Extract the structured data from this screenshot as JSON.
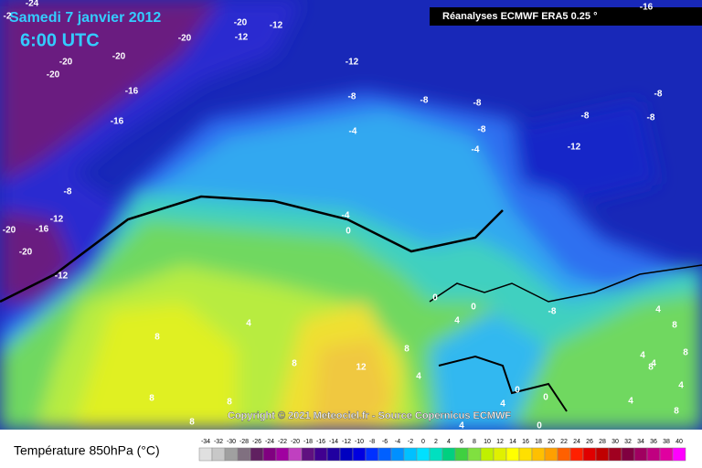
{
  "header": {
    "date": "Samedi 7 janvier 2012",
    "time": "6:00 UTC",
    "source_box": "Réanalyses ECMWF ERA5 0.25 °",
    "copyright": "Copyright © 2021 Meteociel.fr - Source Copernicus ECMWF"
  },
  "map": {
    "contour_labels": [
      -24,
      -2,
      -20,
      -12,
      -12,
      -20,
      -20,
      -20,
      -20,
      -16,
      -16,
      -12,
      -16,
      -8,
      -8,
      -8,
      -8,
      -8,
      -8,
      -8,
      -4,
      -4,
      -12,
      -8,
      -12,
      -20,
      -16,
      -20,
      -12,
      -4,
      0,
      0,
      4,
      0,
      -8,
      4,
      8,
      4,
      8,
      8,
      8,
      12,
      4,
      4,
      8,
      4,
      8,
      8,
      8,
      8,
      0,
      0,
      4,
      4,
      4,
      4,
      8,
      0
    ]
  },
  "legend": {
    "label": "Température 850hPa (°C)",
    "ticks": [
      -34,
      -32,
      -30,
      -28,
      -26,
      -24,
      -22,
      -20,
      -18,
      -16,
      -14,
      -12,
      -10,
      -8,
      -6,
      -4,
      -2,
      0,
      2,
      4,
      6,
      8,
      10,
      12,
      14,
      16,
      18,
      20,
      22,
      24,
      26,
      28,
      30,
      32,
      34,
      36,
      38,
      40
    ],
    "colors": [
      "#e0e0e0",
      "#c8c8c8",
      "#a0a0a0",
      "#807080",
      "#602060",
      "#800080",
      "#a000a0",
      "#c040c0",
      "#601080",
      "#400090",
      "#2000a0",
      "#0000c0",
      "#0000e0",
      "#0030ff",
      "#0060ff",
      "#0090ff",
      "#00c0ff",
      "#00e0ff",
      "#00e0c0",
      "#00d080",
      "#40d040",
      "#80e040",
      "#c0f000",
      "#e0f000",
      "#ffff00",
      "#ffe000",
      "#ffc000",
      "#ffa000",
      "#ff6000",
      "#ff2000",
      "#e00000",
      "#c00000",
      "#a00020",
      "#800040",
      "#a00060",
      "#c00080",
      "#e000a0",
      "#ff00ff"
    ]
  }
}
